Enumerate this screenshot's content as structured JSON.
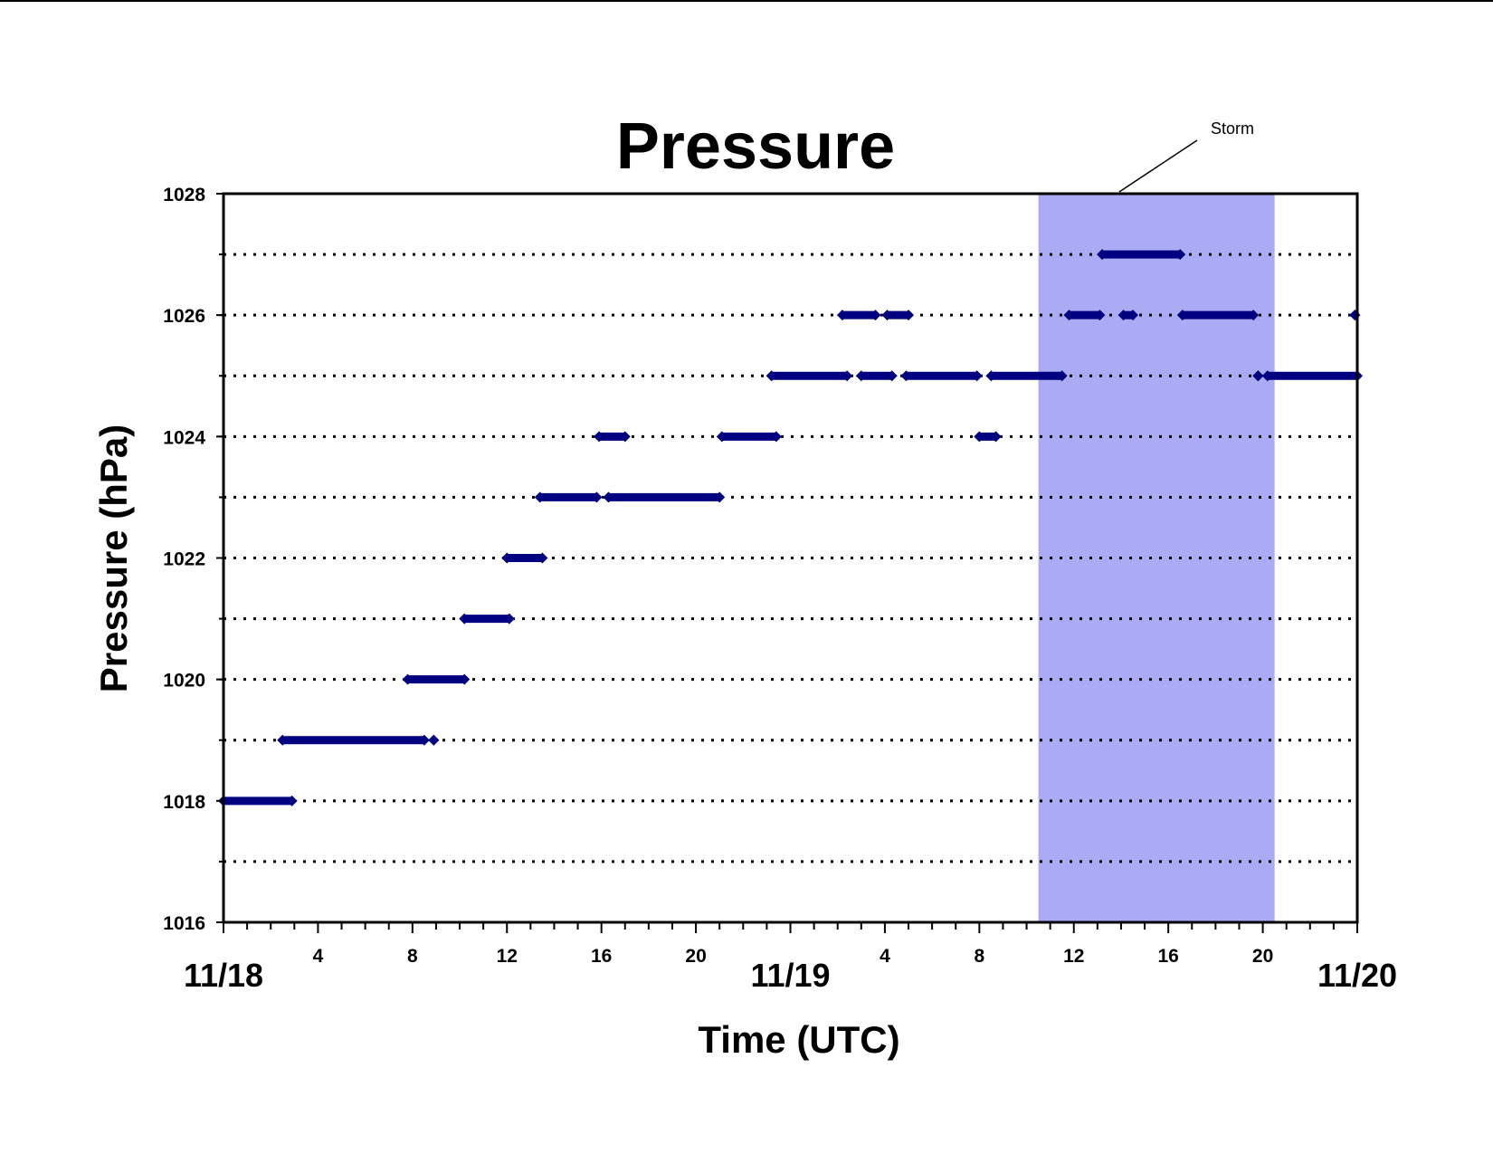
{
  "chart_data": {
    "type": "scatter",
    "title": "Pressure",
    "xlabel": "Time (UTC)",
    "ylabel": "Pressure (hPa)",
    "xlim": [
      0,
      48
    ],
    "ylim": [
      1016,
      1028
    ],
    "yticks": [
      1016,
      1018,
      1020,
      1022,
      1024,
      1026,
      1028
    ],
    "ytick_labels": [
      "1016",
      "1018",
      "1020",
      "1022",
      "1024",
      "1026",
      "1028"
    ],
    "gridlines_y": [
      1017,
      1018,
      1019,
      1020,
      1021,
      1022,
      1023,
      1024,
      1025,
      1026,
      1027
    ],
    "grid": "dotted horizontal",
    "minor_xticks_hours": [
      0,
      1,
      2,
      3,
      4,
      5,
      6,
      7,
      8,
      9,
      10,
      11,
      12,
      13,
      14,
      15,
      16,
      17,
      18,
      19,
      20,
      21,
      22,
      23,
      24,
      25,
      26,
      27,
      28,
      29,
      30,
      31,
      32,
      33,
      34,
      35,
      36,
      37,
      38,
      39,
      40,
      41,
      42,
      43,
      44,
      45,
      46,
      47,
      48
    ],
    "xtick_hours": [
      {
        "hour": 4,
        "label": "4"
      },
      {
        "hour": 8,
        "label": "8"
      },
      {
        "hour": 12,
        "label": "12"
      },
      {
        "hour": 16,
        "label": "16"
      },
      {
        "hour": 20,
        "label": "20"
      },
      {
        "hour": 28,
        "label": "4"
      },
      {
        "hour": 32,
        "label": "8"
      },
      {
        "hour": 36,
        "label": "12"
      },
      {
        "hour": 40,
        "label": "16"
      },
      {
        "hour": 44,
        "label": "20"
      }
    ],
    "xtick_dates": [
      {
        "hour": 0,
        "label": "11/18"
      },
      {
        "hour": 24,
        "label": "11/19"
      },
      {
        "hour": 48,
        "label": "11/20"
      }
    ],
    "series": [
      {
        "color": "#000080",
        "segments": [
          {
            "y": 1018,
            "x_start": 0.0,
            "x_end": 2.9
          },
          {
            "y": 1019,
            "x_start": 2.5,
            "x_end": 8.5
          },
          {
            "y": 1019,
            "x_start": 8.9,
            "x_end": 8.9
          },
          {
            "y": 1020,
            "x_start": 7.8,
            "x_end": 10.2
          },
          {
            "y": 1021,
            "x_start": 10.2,
            "x_end": 12.1
          },
          {
            "y": 1022,
            "x_start": 12.0,
            "x_end": 13.5
          },
          {
            "y": 1023,
            "x_start": 13.4,
            "x_end": 15.8
          },
          {
            "y": 1023,
            "x_start": 16.3,
            "x_end": 21.0
          },
          {
            "y": 1024,
            "x_start": 15.9,
            "x_end": 17.0
          },
          {
            "y": 1024,
            "x_start": 21.1,
            "x_end": 23.4
          },
          {
            "y": 1025,
            "x_start": 23.2,
            "x_end": 26.4
          },
          {
            "y": 1025,
            "x_start": 27.0,
            "x_end": 28.3
          },
          {
            "y": 1025,
            "x_start": 28.9,
            "x_end": 31.9
          },
          {
            "y": 1025,
            "x_start": 32.5,
            "x_end": 35.5
          },
          {
            "y": 1025,
            "x_start": 43.8,
            "x_end": 43.8
          },
          {
            "y": 1025,
            "x_start": 44.2,
            "x_end": 48.0
          },
          {
            "y": 1024,
            "x_start": 32.0,
            "x_end": 32.7
          },
          {
            "y": 1026,
            "x_start": 26.2,
            "x_end": 27.6
          },
          {
            "y": 1026,
            "x_start": 28.1,
            "x_end": 29.0
          },
          {
            "y": 1026,
            "x_start": 35.8,
            "x_end": 37.1
          },
          {
            "y": 1026,
            "x_start": 38.1,
            "x_end": 38.5
          },
          {
            "y": 1026,
            "x_start": 40.6,
            "x_end": 43.6
          },
          {
            "y": 1026,
            "x_start": 47.9,
            "x_end": 47.9
          },
          {
            "y": 1027,
            "x_start": 37.2,
            "x_end": 40.5
          }
        ]
      }
    ],
    "shaded_regions": [
      {
        "x_start": 34.5,
        "x_end": 44.5,
        "color": "#aaaaf5",
        "label": "Storm"
      }
    ],
    "annotations": [
      {
        "text": "Storm",
        "points_to_hour": 38.0
      }
    ]
  }
}
